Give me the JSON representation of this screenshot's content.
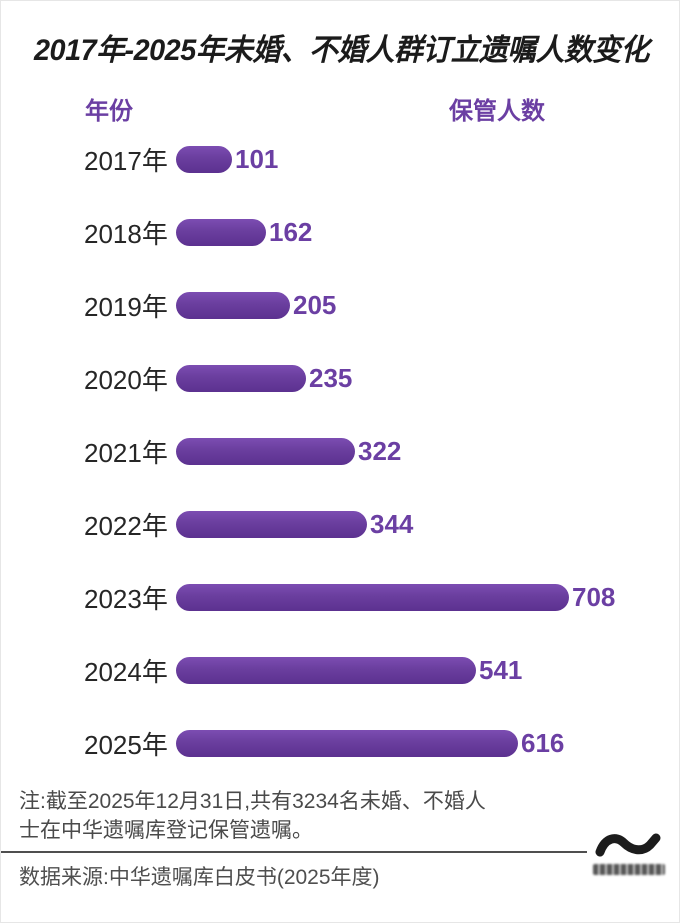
{
  "title": "2017年-2025年未婚、不婚人群订立遗嘱人数变化",
  "columns": {
    "year_header": "年份",
    "count_header": "保管人数"
  },
  "chart_data": {
    "type": "bar",
    "orientation": "horizontal",
    "title": "2017年-2025年未婚、不婚人群订立遗嘱人数变化",
    "xlabel": "保管人数",
    "ylabel": "年份",
    "categories": [
      "2017年",
      "2018年",
      "2019年",
      "2020年",
      "2021年",
      "2022年",
      "2023年",
      "2024年",
      "2025年"
    ],
    "values": [
      101,
      162,
      205,
      235,
      322,
      344,
      708,
      541,
      616
    ],
    "xlim": [
      0,
      708
    ],
    "grid": false,
    "legend": "none",
    "value_labels_shown": true
  },
  "footer": {
    "note": "注:截至2025年12月31日,共有3234名未婚、不婚人士在中华遗嘱库登记保管遗嘱。",
    "source": "数据来源:中华遗嘱库白皮书(2025年度)",
    "logo": "wave-logo"
  },
  "colors": {
    "background": "#ffffff",
    "title_ink": "#1b1b1b",
    "accent_purple_bar": "#6A3E9E",
    "accent_purple_text": "#6B3FA3",
    "note_gray": "#4a4a4a",
    "divider_gray": "#4f4f4f"
  }
}
